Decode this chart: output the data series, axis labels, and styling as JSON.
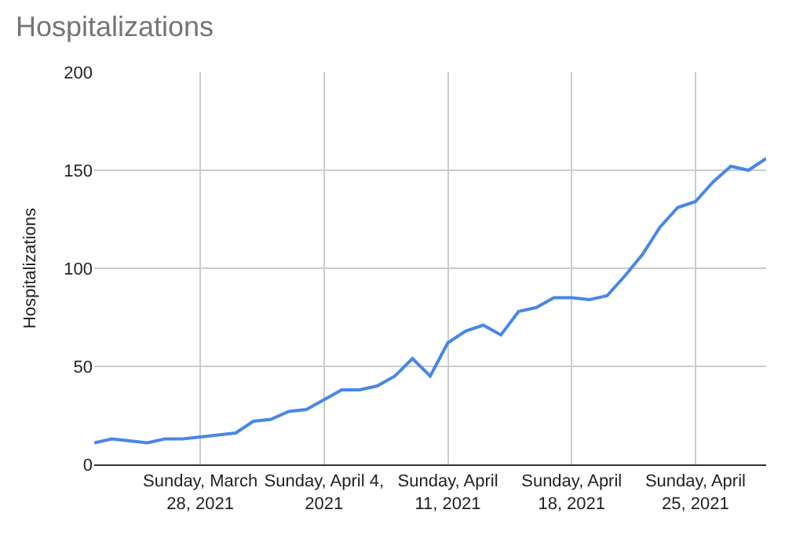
{
  "chart_data": {
    "type": "line",
    "title": "Hospitalizations",
    "ylabel": "Hospitalizations",
    "x": [
      "2021-03-22",
      "2021-03-23",
      "2021-03-24",
      "2021-03-25",
      "2021-03-26",
      "2021-03-27",
      "2021-03-28",
      "2021-03-29",
      "2021-03-30",
      "2021-03-31",
      "2021-04-01",
      "2021-04-02",
      "2021-04-03",
      "2021-04-04",
      "2021-04-05",
      "2021-04-06",
      "2021-04-07",
      "2021-04-08",
      "2021-04-09",
      "2021-04-10",
      "2021-04-11",
      "2021-04-12",
      "2021-04-13",
      "2021-04-14",
      "2021-04-15",
      "2021-04-16",
      "2021-04-17",
      "2021-04-18",
      "2021-04-19",
      "2021-04-20",
      "2021-04-21",
      "2021-04-22",
      "2021-04-23",
      "2021-04-24",
      "2021-04-25",
      "2021-04-26",
      "2021-04-27",
      "2021-04-28",
      "2021-04-29"
    ],
    "series": [
      {
        "color": "#4a86e8",
        "values": [
          11,
          13,
          12,
          11,
          13,
          13,
          14,
          15,
          16,
          22,
          23,
          27,
          28,
          33,
          38,
          38,
          40,
          45,
          54,
          45,
          62,
          68,
          71,
          66,
          78,
          80,
          85,
          85,
          84,
          86,
          96,
          107,
          121,
          131,
          134,
          144,
          152,
          150,
          156
        ]
      }
    ],
    "xlim": [
      "2021-03-22",
      "2021-04-29"
    ],
    "xticks": [
      {
        "value": "2021-03-28",
        "label": "Sunday, March\n28, 2021"
      },
      {
        "value": "2021-04-04",
        "label": "Sunday, April 4,\n2021"
      },
      {
        "value": "2021-04-11",
        "label": "Sunday, April\n11, 2021"
      },
      {
        "value": "2021-04-18",
        "label": "Sunday, April\n18, 2021"
      },
      {
        "value": "2021-04-25",
        "label": "Sunday, April\n25, 2021"
      }
    ],
    "ylim": [
      0,
      200
    ],
    "yticks": [
      0,
      50,
      100,
      150,
      200
    ],
    "grid": true,
    "marker": "none",
    "line_style": "solid"
  }
}
